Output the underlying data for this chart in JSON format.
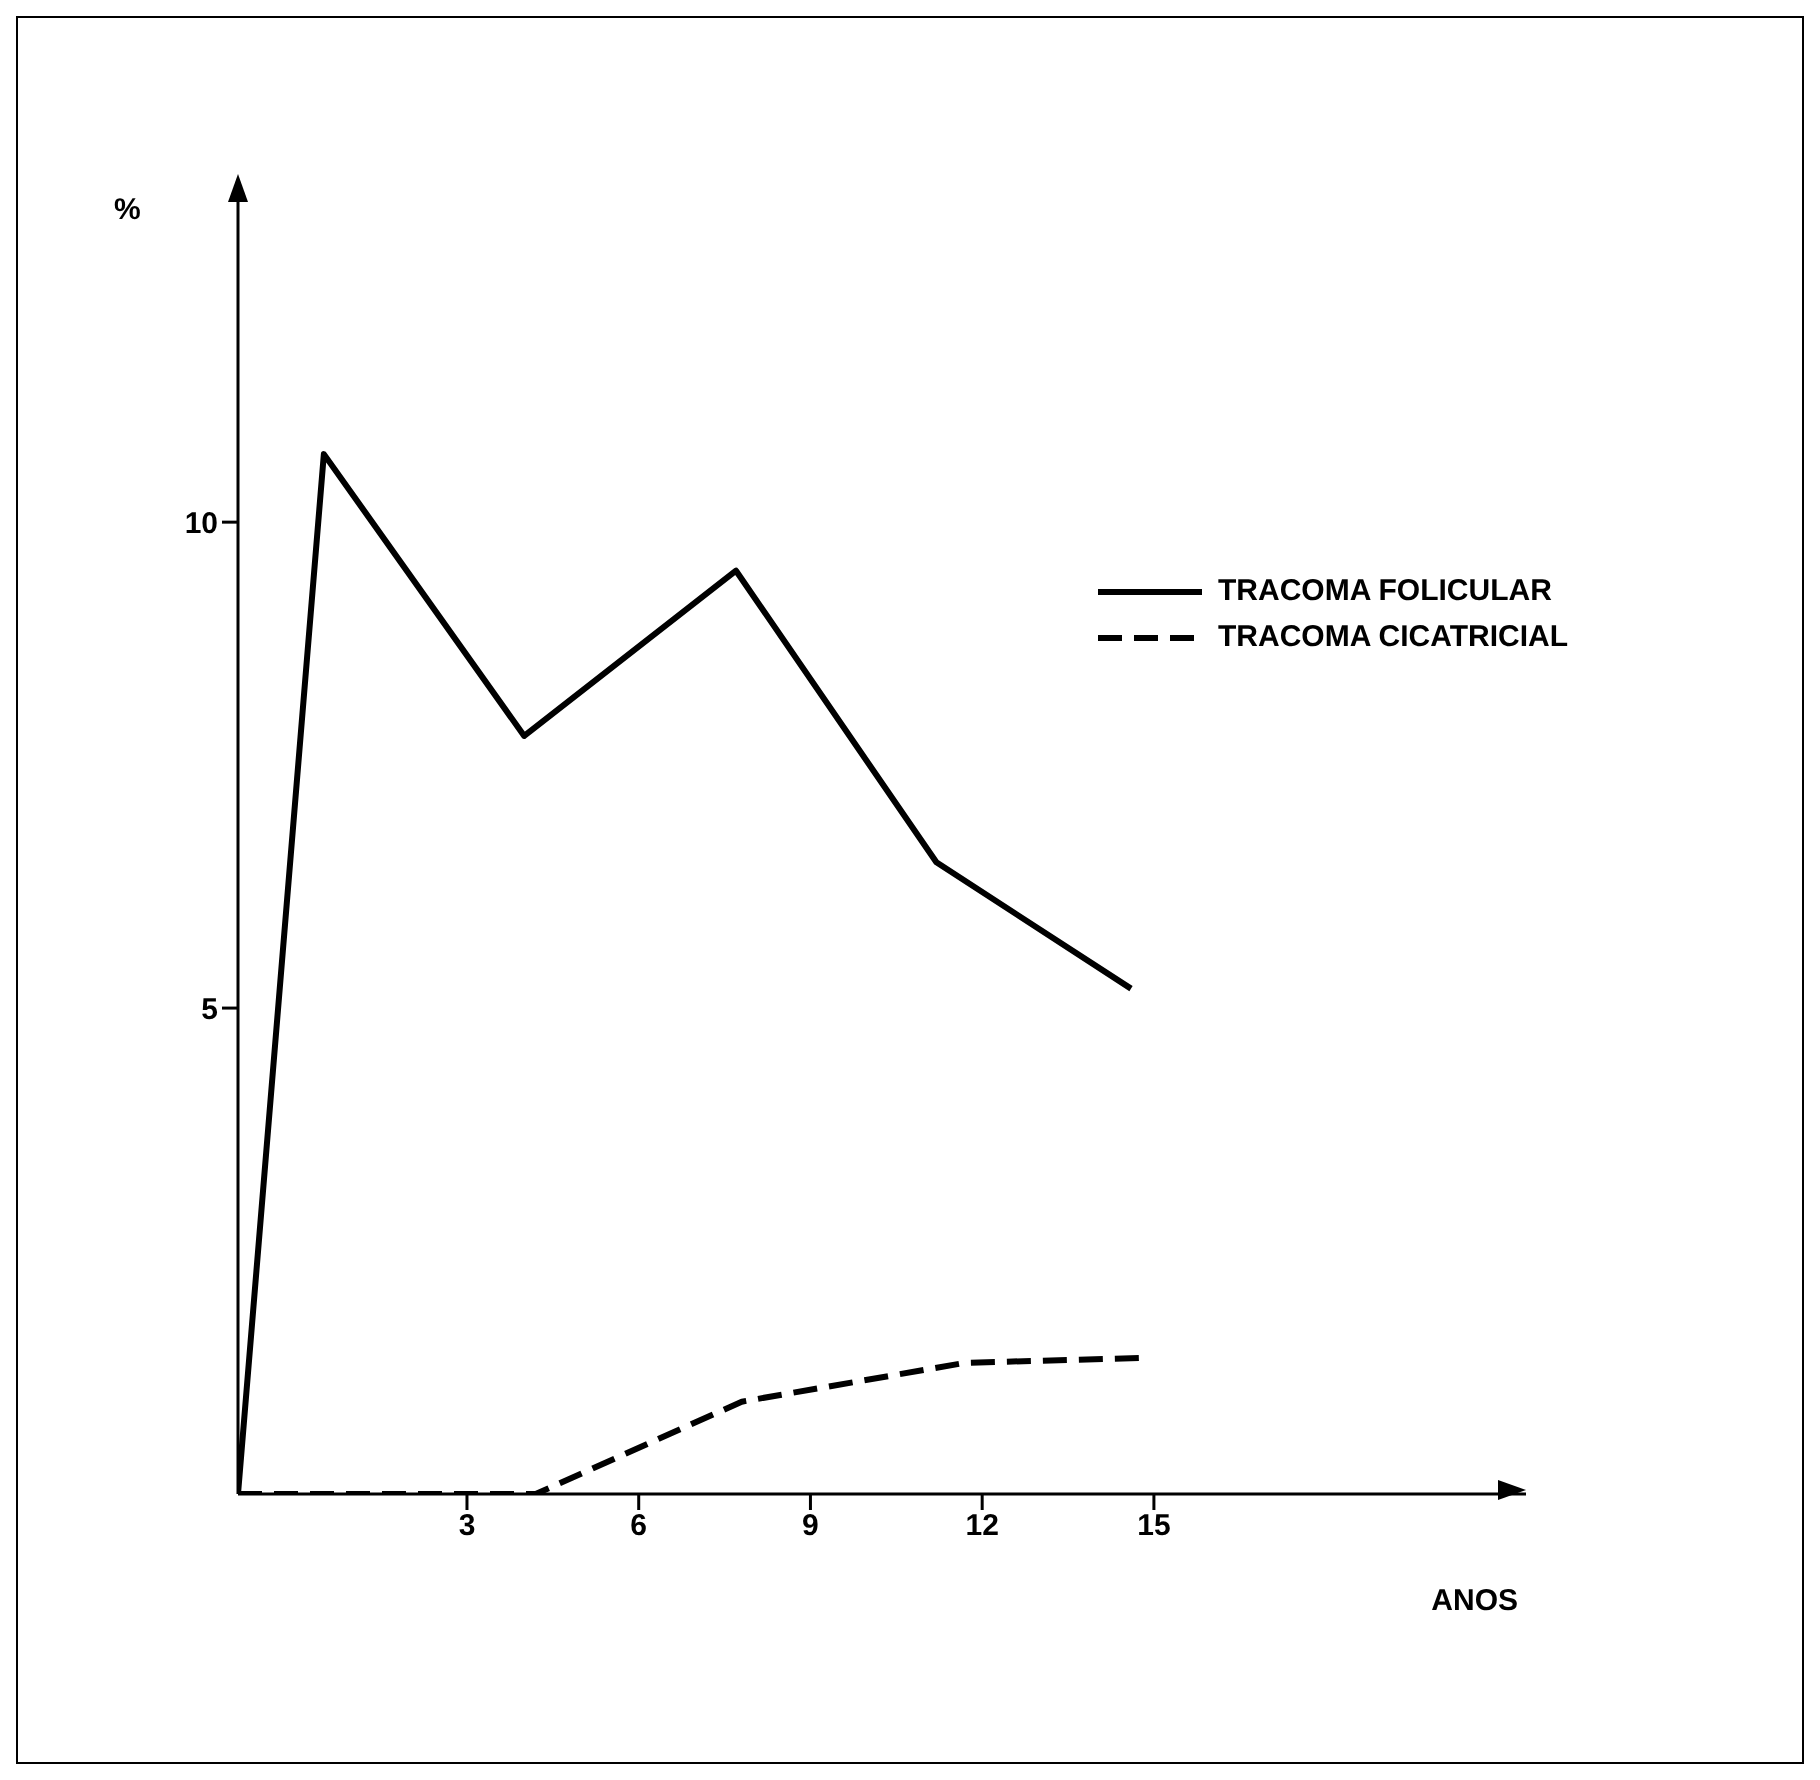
{
  "chart_data": {
    "type": "line",
    "xlabel": "ANOS",
    "ylabel": "%",
    "xlim": [
      -1,
      21.5
    ],
    "xticks": [
      3,
      6,
      9,
      12,
      15
    ],
    "ylim": [
      0,
      13.5
    ],
    "yticks": [
      5,
      10
    ],
    "grid": false,
    "legend": "top right",
    "marker": "none",
    "series": [
      {
        "name": "TRACOMA FOLICULAR",
        "color": "#000000",
        "line_style": "solid",
        "x": [
          -1,
          0.5,
          4,
          7.7,
          11.2,
          14.6
        ],
        "values": [
          0,
          10.7,
          7.8,
          9.5,
          6.5,
          5.2
        ]
      },
      {
        "name": "TRACOMA CICATRICIAL",
        "color": "#000000",
        "line_style": "dashed",
        "x": [
          -1,
          4.2,
          7.8,
          11.7,
          14.8
        ],
        "values": [
          0,
          0,
          0.95,
          1.35,
          1.4
        ]
      }
    ]
  }
}
